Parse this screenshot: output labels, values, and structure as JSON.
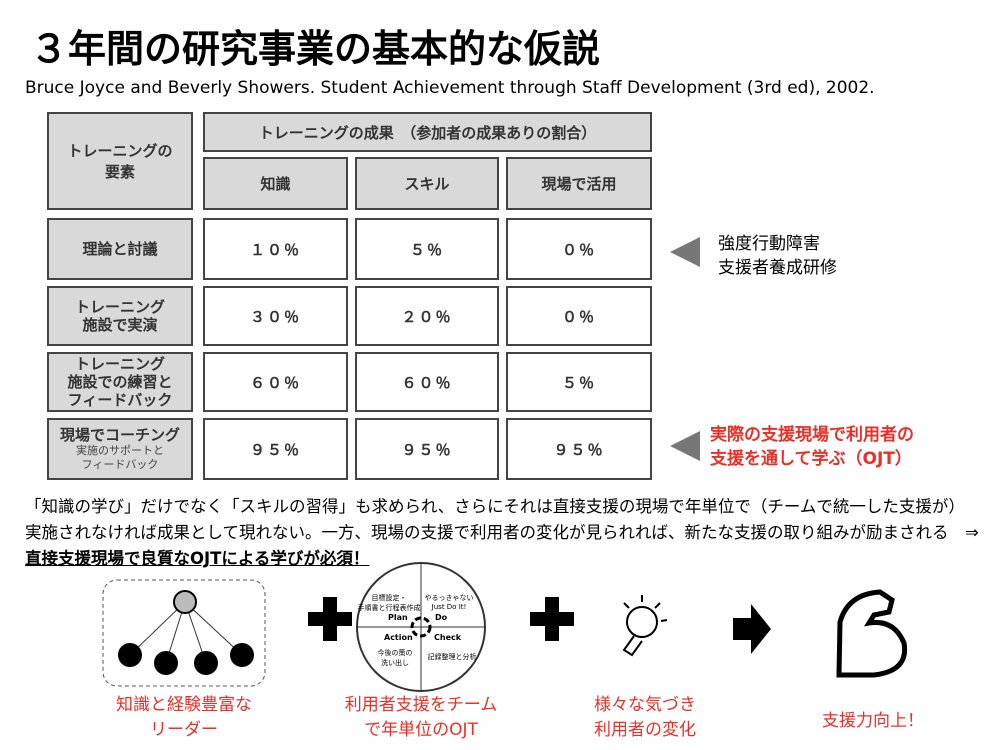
{
  "title": "３年間の研究事業の基本的な仮説",
  "citation": "Bruce Joyce and Beverly Showers. Student Achievement through Staff Development (3rd ed), 2002.",
  "table": {
    "corner": "トレーニングの\n要素",
    "group_header": "トレーニングの成果　（参加者の成果ありの割合）",
    "columns": [
      "知識",
      "スキル",
      "現場で活用"
    ],
    "rows": [
      {
        "label": "理論と討議",
        "cells": [
          "１０％",
          "５％",
          "０％"
        ]
      },
      {
        "label": "トレーニング\n施設で実演",
        "cells": [
          "３０％",
          "２０％",
          "０％"
        ]
      },
      {
        "label": "トレーニング\n施設での練習と\nフィードバック",
        "cells": [
          "６０％",
          "６０％",
          "５％"
        ]
      },
      {
        "label": "現場でコーチング",
        "sublabel": "実施のサポートと\nフィードバック",
        "cells": [
          "９５％",
          "９５％",
          "９５％"
        ]
      }
    ]
  },
  "notes": [
    "強度行動障害\n支援者養成研修",
    "実際の支援現場で利用者の\n支援を通して学ぶ（OJT）"
  ],
  "paragraph": "「知識の学び」だけでなく「スキルの習得」も求められ、さらにそれは直接支援の現場で年単位で（チームで統一した支援が）実施されなければ成果として現れない。一方、現場の支援で利用者の変化が見られれば、新たな支援の取り組みが励まされる　⇒　",
  "conclusion": "直接支援現場で良質なOJTによる学びが必須！",
  "cycle": {
    "plan_note": "目標設定・\n手順書と行程表作成",
    "do_note": "やるっきゃない\nJust Do It!",
    "plan": "Plan",
    "do": "Do",
    "action": "Action",
    "check": "Check",
    "action_note": "今後の策の\n洗い出し",
    "check_note": "記録整理と分析"
  },
  "captions": [
    "知識と経験豊富な\nリーダー",
    "利用者支援をチーム\nで年単位のOJT",
    "様々な気づき\n利用者の変化",
    "支援力向上！"
  ]
}
